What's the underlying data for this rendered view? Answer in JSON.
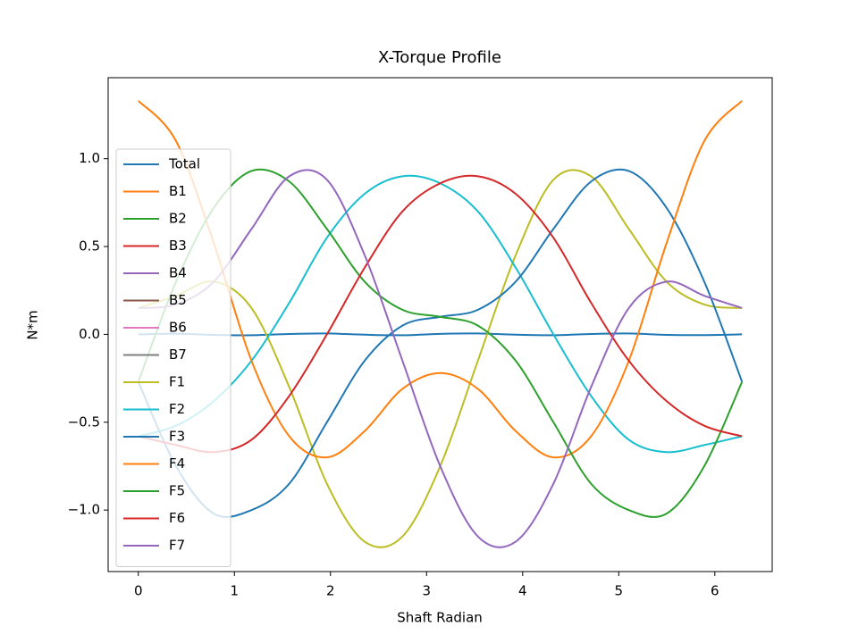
{
  "chart_data": {
    "type": "line",
    "title": "X-Torque Profile",
    "xlabel": "Shaft Radian",
    "ylabel": "N*m",
    "x": [
      0,
      0.393,
      0.785,
      1.178,
      1.571,
      1.963,
      2.356,
      2.749,
      3.142,
      3.534,
      3.927,
      4.32,
      4.712,
      5.105,
      5.498,
      5.89,
      6.283
    ],
    "xlim": [
      -0.314,
      6.597
    ],
    "ylim": [
      -1.35,
      1.461
    ],
    "xticks": [
      0,
      1,
      2,
      3,
      4,
      5,
      6
    ],
    "yticks": [
      {
        "value": -1.0,
        "label": "−1.0"
      },
      {
        "value": -0.5,
        "label": "−0.5"
      },
      {
        "value": 0.0,
        "label": "0.0"
      },
      0.5,
      {
        "value": 1.0,
        "label": "1.0"
      }
    ],
    "legend": "upper left",
    "grid": false,
    "series": [
      {
        "name": "Total",
        "color": "#1f77b4",
        "values": [
          0.0,
          0.004,
          -0.003,
          -0.005,
          0.002,
          0.005,
          -0.002,
          -0.005,
          0.003,
          0.005,
          -0.002,
          -0.005,
          0.002,
          0.005,
          -0.003,
          -0.004,
          0.0
        ]
      },
      {
        "name": "B1",
        "color": "#ff7f0e",
        "values": [
          null,
          null,
          null,
          null,
          null,
          null,
          null,
          null,
          null,
          null,
          null,
          null,
          null,
          null,
          null,
          null,
          null
        ]
      },
      {
        "name": "B2",
        "color": "#2ca02c",
        "values": [
          null,
          null,
          null,
          null,
          null,
          null,
          null,
          null,
          null,
          null,
          null,
          null,
          null,
          null,
          null,
          null,
          null
        ]
      },
      {
        "name": "B3",
        "color": "#d62728",
        "values": [
          null,
          null,
          null,
          null,
          null,
          null,
          null,
          null,
          null,
          null,
          null,
          null,
          null,
          null,
          null,
          null,
          null
        ]
      },
      {
        "name": "B4",
        "color": "#9467bd",
        "values": [
          null,
          null,
          null,
          null,
          null,
          null,
          null,
          null,
          null,
          null,
          null,
          null,
          null,
          null,
          null,
          null,
          null
        ]
      },
      {
        "name": "B5",
        "color": "#8c564b",
        "values": [
          null,
          null,
          null,
          null,
          null,
          null,
          null,
          null,
          null,
          null,
          null,
          null,
          null,
          null,
          null,
          null,
          null
        ]
      },
      {
        "name": "B6",
        "color": "#e377c2",
        "values": [
          null,
          null,
          null,
          null,
          null,
          null,
          null,
          null,
          null,
          null,
          null,
          null,
          null,
          null,
          null,
          null,
          null
        ]
      },
      {
        "name": "B7",
        "color": "#7f7f7f",
        "values": [
          null,
          null,
          null,
          null,
          null,
          null,
          null,
          null,
          null,
          null,
          null,
          null,
          null,
          null,
          null,
          null,
          null
        ]
      },
      {
        "name": "F1",
        "color": "#bcbd22",
        "values": [
          0.15,
          0.22,
          0.3,
          0.15,
          -0.3,
          -0.85,
          -1.18,
          -1.15,
          -0.75,
          -0.15,
          0.45,
          0.88,
          0.9,
          0.6,
          0.3,
          0.17,
          0.15
        ]
      },
      {
        "name": "F2",
        "color": "#17becf",
        "values": [
          -0.58,
          -0.52,
          -0.38,
          -0.15,
          0.18,
          0.55,
          0.8,
          0.9,
          0.86,
          0.7,
          0.38,
          0.0,
          -0.35,
          -0.6,
          -0.67,
          -0.63,
          -0.58
        ]
      },
      {
        "name": "F3",
        "color": "#1f77b4",
        "values": [
          -0.27,
          -0.75,
          -1.02,
          -1.0,
          -0.85,
          -0.5,
          -0.15,
          0.05,
          0.1,
          0.14,
          0.3,
          0.6,
          0.87,
          0.93,
          0.72,
          0.3,
          -0.27
        ]
      },
      {
        "name": "F4",
        "color": "#ff7f0e",
        "values": [
          1.33,
          1.1,
          0.52,
          -0.15,
          -0.58,
          -0.7,
          -0.55,
          -0.31,
          -0.22,
          -0.31,
          -0.55,
          -0.7,
          -0.58,
          -0.15,
          0.52,
          1.1,
          1.33
        ]
      },
      {
        "name": "F5",
        "color": "#2ca02c",
        "values": [
          -0.27,
          0.3,
          0.72,
          0.93,
          0.87,
          0.6,
          0.3,
          0.14,
          0.1,
          0.05,
          -0.15,
          -0.5,
          -0.85,
          -1.0,
          -1.02,
          -0.75,
          -0.27
        ]
      },
      {
        "name": "F6",
        "color": "#d62728",
        "values": [
          -0.58,
          -0.63,
          -0.67,
          -0.6,
          -0.35,
          0.0,
          0.38,
          0.7,
          0.86,
          0.9,
          0.8,
          0.55,
          0.18,
          -0.15,
          -0.38,
          -0.52,
          -0.58
        ]
      },
      {
        "name": "F7",
        "color": "#9467bd",
        "values": [
          0.15,
          0.17,
          0.3,
          0.6,
          0.9,
          0.88,
          0.45,
          -0.15,
          -0.75,
          -1.15,
          -1.18,
          -0.85,
          -0.3,
          0.15,
          0.3,
          0.22,
          0.15
        ]
      }
    ]
  }
}
